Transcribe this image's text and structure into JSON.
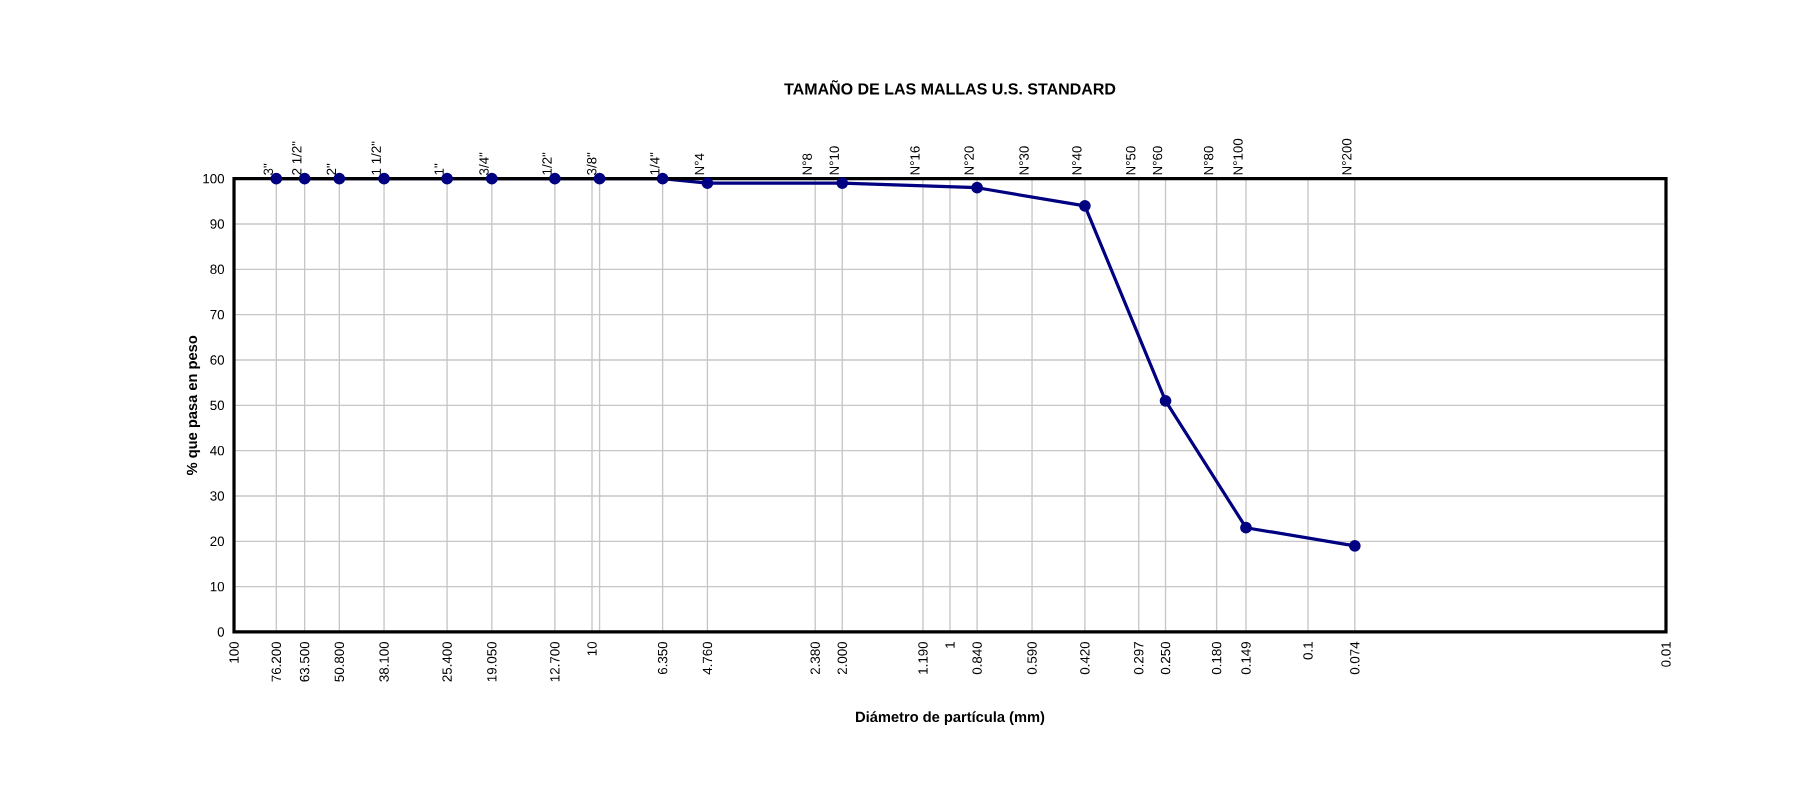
{
  "chart_data": {
    "type": "line",
    "title": "TAMAÑO DE LAS MALLAS U.S. STANDARD",
    "xlabel": "Diámetro de partícula (mm)",
    "ylabel": "% que pasa en peso",
    "x": [
      76.2,
      63.5,
      50.8,
      38.1,
      25.4,
      19.05,
      12.7,
      9.525,
      6.35,
      4.76,
      2.0,
      0.84,
      0.42,
      0.25,
      0.149,
      0.074
    ],
    "series": [
      {
        "color": "#000080",
        "values": [
          100,
          100,
          100,
          100,
          100,
          100,
          100,
          100,
          100,
          99,
          99,
          98,
          94,
          51,
          23,
          19
        ]
      }
    ],
    "log": "x",
    "xlim": [
      100,
      0.01
    ],
    "ylim": [
      0,
      100
    ],
    "yticks": [
      0,
      10,
      20,
      30,
      40,
      50,
      60,
      70,
      80,
      90,
      100
    ],
    "xticks": [
      100,
      {
        "value": 76.2,
        "label": "76.200"
      },
      {
        "value": 63.5,
        "label": "63.500"
      },
      {
        "value": 50.8,
        "label": "50.800"
      },
      {
        "value": 38.1,
        "label": "38.100"
      },
      {
        "value": 25.4,
        "label": "25.400"
      },
      {
        "value": 19.05,
        "label": "19.050"
      },
      {
        "value": 12.7,
        "label": "12.700"
      },
      10,
      {
        "value": 9.525,
        "label": null
      },
      {
        "value": 6.35,
        "label": "6.350"
      },
      {
        "value": 4.76,
        "label": "4.760"
      },
      {
        "value": 2.38,
        "label": "2.380"
      },
      {
        "value": 2.0,
        "label": "2.000"
      },
      {
        "value": 1.19,
        "label": "1.190"
      },
      1,
      {
        "value": 0.84,
        "label": "0.840"
      },
      {
        "value": 0.59,
        "label": "0.590"
      },
      {
        "value": 0.42,
        "label": "0.420"
      },
      {
        "value": 0.297,
        "label": "0.297"
      },
      {
        "value": 0.25,
        "label": "0.250"
      },
      {
        "value": 0.18,
        "label": "0.180"
      },
      {
        "value": 0.149,
        "label": "0.149"
      },
      0.1,
      {
        "value": 0.074,
        "label": "0.074"
      },
      0.01
    ],
    "annotations": [
      "3\"",
      "2 1/2\"",
      "2\"",
      "1 1/2\"",
      "1\"",
      "3/4\"",
      "1/2\"",
      "3/8\"",
      "1/4\"",
      "N°4",
      "N°8",
      "N°10",
      "N°16",
      "N°20",
      "N°30",
      "N°40",
      "N°50",
      "N°60",
      "N°80",
      "N°100",
      "N°200"
    ],
    "grid": true,
    "marker": "circle",
    "line_style": "solid"
  }
}
